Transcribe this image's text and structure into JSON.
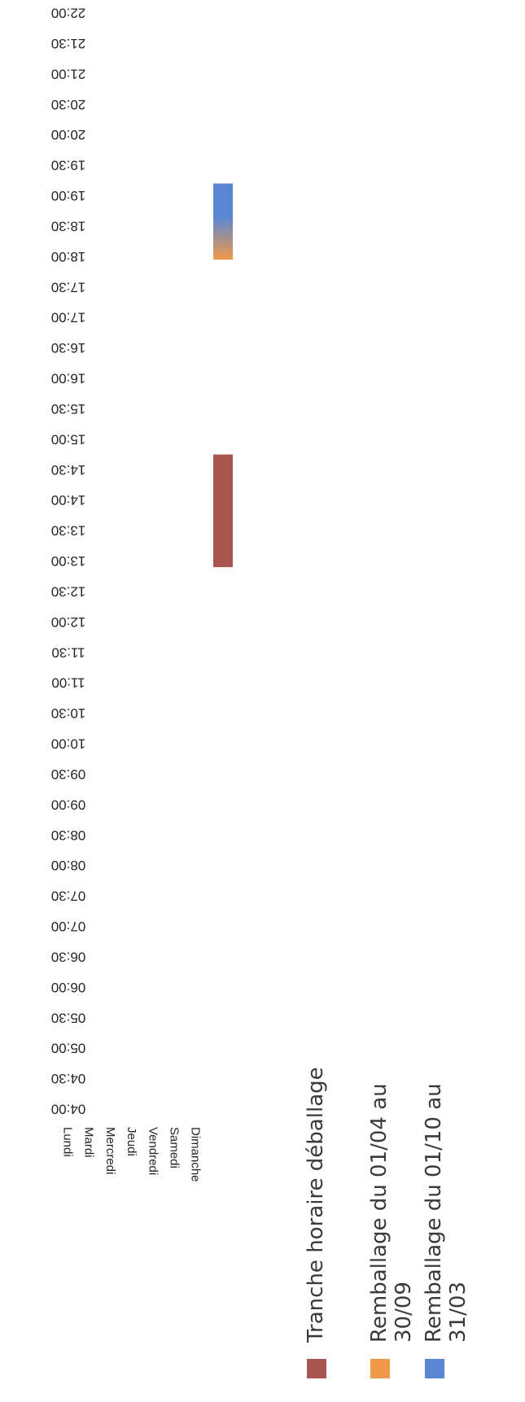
{
  "chart_data": {
    "type": "bar",
    "orientation": "horizontal-gantt",
    "title": "",
    "xlabel": "",
    "ylabel": "",
    "categories": [
      "Lundi",
      "Mardi",
      "Mercredi",
      "Jeudi",
      "Vendredi",
      "Samedi",
      "Dimanche"
    ],
    "time_ticks": [
      "04:00",
      "04:30",
      "05:00",
      "05:30",
      "06:00",
      "06:30",
      "07:00",
      "07:30",
      "08:00",
      "08:30",
      "09:00",
      "09:30",
      "10:00",
      "10:30",
      "11:00",
      "11:30",
      "12:00",
      "12:30",
      "13:00",
      "13:30",
      "14:00",
      "14:30",
      "15:00",
      "15:30",
      "16:00",
      "16:30",
      "17:00",
      "17:30",
      "18:00",
      "18:30",
      "19:00",
      "19:30",
      "20:00",
      "20:30",
      "21:00",
      "21:30",
      "22:00"
    ],
    "xlim": [
      4,
      22
    ],
    "series": [
      {
        "name": "Tranche horaire déballage",
        "color": "#a9554f",
        "bars": [
          {
            "category": "Samedi",
            "start": 12.9,
            "end": 14.75
          }
        ]
      },
      {
        "name": "Remballage du 01/04 au 30/09",
        "color": "#f0994a",
        "gradient_to": "#5b87d2",
        "bars": [
          {
            "category": "Samedi",
            "start": 17.95,
            "end": 18.65
          }
        ]
      },
      {
        "name": "Remballage du 01/10 au 31/03",
        "color": "#5b87d2",
        "bars": [
          {
            "category": "Samedi",
            "start": 17.95,
            "end": 19.2
          }
        ]
      }
    ],
    "legend_position": "bottom",
    "grid": false
  }
}
